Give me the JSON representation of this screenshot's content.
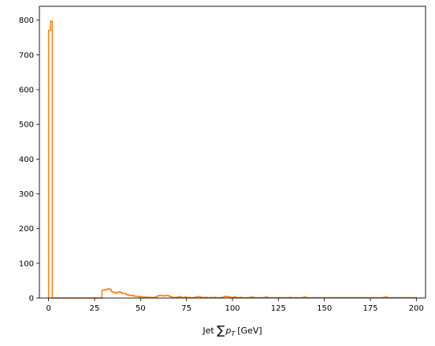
{
  "chart_data": {
    "type": "histogram",
    "title": "",
    "xlabel": "Jet ∑p_T [GeV]",
    "xlabel_prefix": "Jet ",
    "xlabel_sum": "∑",
    "xlabel_p": "p",
    "xlabel_sub": "T",
    "xlabel_unit": "[GeV]",
    "ylabel": "",
    "xlim": [
      -5,
      205
    ],
    "ylim": [
      0,
      840
    ],
    "xticks": [
      0,
      25,
      50,
      75,
      100,
      125,
      150,
      175,
      200
    ],
    "yticks": [
      0,
      100,
      200,
      300,
      400,
      500,
      600,
      700,
      800
    ],
    "grid": false,
    "series": [
      {
        "color": "#ff7f0e",
        "bin_width": 1,
        "bins": [
          [
            0,
            770
          ],
          [
            1,
            797
          ],
          [
            2,
            0
          ],
          [
            29,
            22
          ],
          [
            30,
            23
          ],
          [
            31,
            24
          ],
          [
            32,
            27
          ],
          [
            33,
            25
          ],
          [
            34,
            19
          ],
          [
            35,
            17
          ],
          [
            36,
            14
          ],
          [
            37,
            16
          ],
          [
            38,
            18
          ],
          [
            39,
            16
          ],
          [
            40,
            13
          ],
          [
            41,
            13
          ],
          [
            42,
            10
          ],
          [
            43,
            9
          ],
          [
            44,
            7
          ],
          [
            45,
            8
          ],
          [
            46,
            6
          ],
          [
            47,
            5
          ],
          [
            48,
            5
          ],
          [
            49,
            3
          ],
          [
            50,
            4
          ],
          [
            51,
            3
          ],
          [
            52,
            2
          ],
          [
            53,
            3
          ],
          [
            54,
            2
          ],
          [
            55,
            2
          ],
          [
            56,
            1
          ],
          [
            57,
            2
          ],
          [
            58,
            3
          ],
          [
            59,
            6
          ],
          [
            60,
            7
          ],
          [
            61,
            8
          ],
          [
            62,
            6
          ],
          [
            63,
            7
          ],
          [
            64,
            8
          ],
          [
            65,
            6
          ],
          [
            66,
            4
          ],
          [
            67,
            2
          ],
          [
            68,
            2
          ],
          [
            69,
            1
          ],
          [
            70,
            3
          ],
          [
            71,
            4
          ],
          [
            72,
            2
          ],
          [
            73,
            1
          ],
          [
            74,
            3
          ],
          [
            75,
            1
          ],
          [
            76,
            2
          ],
          [
            77,
            1
          ],
          [
            78,
            1
          ],
          [
            79,
            1
          ],
          [
            80,
            3
          ],
          [
            81,
            4
          ],
          [
            82,
            3
          ],
          [
            83,
            2
          ],
          [
            84,
            1
          ],
          [
            85,
            2
          ],
          [
            86,
            1
          ],
          [
            87,
            1
          ],
          [
            88,
            2
          ],
          [
            89,
            1
          ],
          [
            90,
            2
          ],
          [
            91,
            1
          ],
          [
            92,
            1
          ],
          [
            93,
            1
          ],
          [
            94,
            2
          ],
          [
            95,
            3
          ],
          [
            96,
            5
          ],
          [
            97,
            4
          ],
          [
            98,
            3
          ],
          [
            99,
            2
          ],
          [
            100,
            2
          ],
          [
            101,
            3
          ],
          [
            102,
            1
          ],
          [
            103,
            1
          ],
          [
            104,
            2
          ],
          [
            105,
            1
          ],
          [
            106,
            1
          ],
          [
            107,
            1
          ],
          [
            108,
            1
          ],
          [
            109,
            2
          ],
          [
            110,
            3
          ],
          [
            111,
            2
          ],
          [
            112,
            1
          ],
          [
            113,
            1
          ],
          [
            114,
            1
          ],
          [
            115,
            1
          ],
          [
            116,
            1
          ],
          [
            117,
            2
          ],
          [
            118,
            3
          ],
          [
            119,
            1
          ],
          [
            120,
            1
          ],
          [
            121,
            1
          ],
          [
            122,
            1
          ],
          [
            123,
            1
          ],
          [
            124,
            1
          ],
          [
            125,
            1
          ],
          [
            126,
            1
          ],
          [
            127,
            1
          ],
          [
            128,
            1
          ],
          [
            129,
            1
          ],
          [
            130,
            1
          ],
          [
            131,
            2
          ],
          [
            132,
            1
          ],
          [
            133,
            1
          ],
          [
            134,
            1
          ],
          [
            135,
            1
          ],
          [
            136,
            1
          ],
          [
            137,
            1
          ],
          [
            138,
            2
          ],
          [
            139,
            3
          ],
          [
            140,
            1
          ],
          [
            141,
            1
          ],
          [
            142,
            1
          ],
          [
            143,
            1
          ],
          [
            144,
            1
          ],
          [
            145,
            1
          ],
          [
            146,
            1
          ],
          [
            147,
            1
          ],
          [
            148,
            1
          ],
          [
            149,
            1
          ],
          [
            150,
            1
          ],
          [
            151,
            1
          ],
          [
            152,
            1
          ],
          [
            153,
            1
          ],
          [
            154,
            1
          ],
          [
            155,
            1
          ],
          [
            156,
            1
          ],
          [
            157,
            1
          ],
          [
            158,
            1
          ],
          [
            159,
            1
          ],
          [
            160,
            1
          ],
          [
            161,
            1
          ],
          [
            162,
            1
          ],
          [
            163,
            1
          ],
          [
            164,
            1
          ],
          [
            165,
            1
          ],
          [
            166,
            1
          ],
          [
            167,
            1
          ],
          [
            168,
            1
          ],
          [
            169,
            1
          ],
          [
            170,
            1
          ],
          [
            171,
            1
          ],
          [
            172,
            1
          ],
          [
            173,
            1
          ],
          [
            174,
            1
          ],
          [
            175,
            1
          ],
          [
            176,
            1
          ],
          [
            177,
            1
          ],
          [
            178,
            1
          ],
          [
            179,
            1
          ],
          [
            180,
            1
          ],
          [
            181,
            1
          ],
          [
            182,
            2
          ],
          [
            183,
            3
          ],
          [
            184,
            1
          ],
          [
            185,
            1
          ],
          [
            186,
            1
          ],
          [
            187,
            1
          ],
          [
            188,
            1
          ],
          [
            189,
            1
          ],
          [
            190,
            1
          ],
          [
            191,
            1
          ],
          [
            192,
            1
          ],
          [
            193,
            1
          ],
          [
            194,
            1
          ],
          [
            195,
            1
          ],
          [
            196,
            1
          ],
          [
            197,
            1
          ],
          [
            198,
            1
          ],
          [
            199,
            1
          ]
        ]
      }
    ]
  }
}
